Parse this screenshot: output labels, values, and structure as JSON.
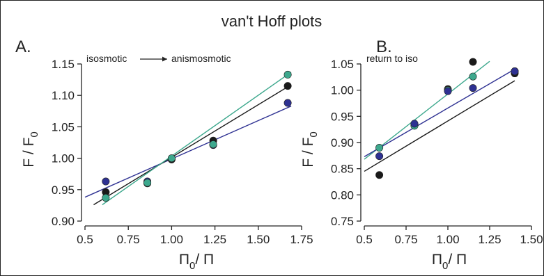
{
  "figure": {
    "title": "van't Hoff plots",
    "colors": {
      "black": "#1a1a1a",
      "teal": "#3da88d",
      "navy": "#2e3192",
      "axis": "#222222"
    }
  },
  "chart_data": [
    {
      "type": "scatter",
      "panel_label": "A.",
      "annotation_left": "isosmotic",
      "annotation_right": "anismosmotic",
      "xlabel_main": "Π",
      "xlabel_sub": "0",
      "xlabel_tail": "/ Π",
      "ylabel_main": "F / F",
      "ylabel_sub": "0",
      "xlim": [
        0.5,
        1.75
      ],
      "ylim": [
        0.9,
        1.15
      ],
      "xticks": [
        0.5,
        0.75,
        1.0,
        1.25,
        1.5,
        1.75
      ],
      "xtick_labels": [
        "0.5",
        "0.75",
        "1.00",
        "1.25",
        "1.50",
        "1.75"
      ],
      "yticks": [
        0.9,
        0.95,
        1.0,
        1.05,
        1.1,
        1.15
      ],
      "ytick_labels": [
        "0.90",
        "0.95",
        "1.00",
        "1.05",
        "1.10",
        "1.15"
      ],
      "grid": false,
      "series": [
        {
          "color": "navy",
          "x": [
            0.62,
            0.86,
            1.0,
            1.24,
            1.67
          ],
          "y": [
            0.963,
            0.963,
            0.999,
            1.021,
            1.088
          ],
          "fit": {
            "x": [
              0.5,
              1.69
            ],
            "y": [
              0.938,
              1.083
            ]
          }
        },
        {
          "color": "black",
          "x": [
            0.62,
            0.86,
            1.0,
            1.24,
            1.67
          ],
          "y": [
            0.946,
            0.96,
            0.998,
            1.028,
            1.115
          ],
          "fit": {
            "x": [
              0.55,
              1.69
            ],
            "y": [
              0.926,
              1.117
            ]
          }
        },
        {
          "color": "teal",
          "x": [
            0.62,
            0.86,
            1.0,
            1.24,
            1.67
          ],
          "y": [
            0.937,
            0.961,
            1.0,
            1.022,
            1.133
          ],
          "fit": {
            "x": [
              0.6,
              1.69
            ],
            "y": [
              0.926,
              1.137
            ]
          }
        }
      ]
    },
    {
      "type": "scatter",
      "panel_label": "B.",
      "annotation_left": "return to iso",
      "xlabel_main": "Π",
      "xlabel_sub": "0",
      "xlabel_tail": "/ Π",
      "ylabel_main": "F / F",
      "ylabel_sub": "0",
      "xlim": [
        0.5,
        1.5
      ],
      "ylim": [
        0.75,
        1.05
      ],
      "xticks": [
        0.5,
        0.75,
        1.0,
        1.25,
        1.5
      ],
      "xtick_labels": [
        "0.5",
        "0.75",
        "1.00",
        "1.25",
        "1.50"
      ],
      "yticks": [
        0.75,
        0.8,
        0.85,
        0.9,
        0.95,
        1.0,
        1.05
      ],
      "ytick_labels": [
        "0.75",
        "0.80",
        "0.85",
        "0.90",
        "0.95",
        "1.00",
        "1.05"
      ],
      "grid": false,
      "series": [
        {
          "color": "black",
          "x": [
            0.59,
            0.8,
            1.0,
            1.15,
            1.4
          ],
          "y": [
            0.838,
            0.934,
            1.002,
            1.054,
            1.032
          ],
          "fit": {
            "x": [
              0.5,
              1.4
            ],
            "y": [
              0.845,
              1.018
            ]
          }
        },
        {
          "color": "teal",
          "x": [
            0.59,
            0.8,
            1.0,
            1.15,
            1.4
          ],
          "y": [
            0.89,
            0.932,
            1.0,
            1.026,
            1.036
          ],
          "fit": {
            "x": [
              0.5,
              1.25
            ],
            "y": [
              0.868,
              1.055
            ]
          }
        },
        {
          "color": "navy",
          "x": [
            0.59,
            0.8,
            1.0,
            1.15,
            1.4
          ],
          "y": [
            0.874,
            0.936,
            0.998,
            1.004,
            1.036
          ],
          "fit": {
            "x": [
              0.5,
              1.4
            ],
            "y": [
              0.873,
              1.04
            ]
          }
        }
      ]
    }
  ]
}
